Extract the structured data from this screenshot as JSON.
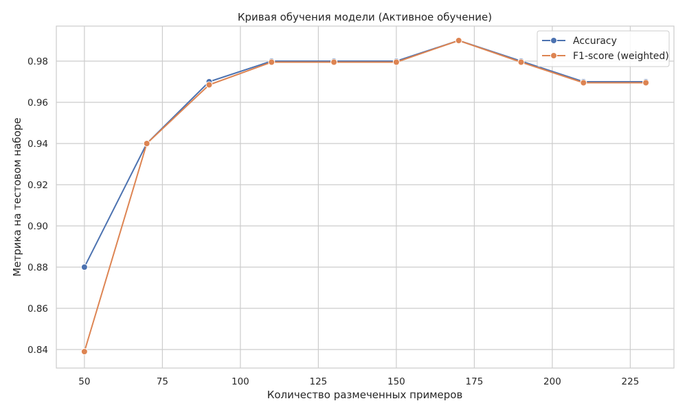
{
  "chart_data": {
    "type": "line",
    "title": "Кривая обучения модели (Активное обучение)",
    "xlabel": "Количество размеченных примеров",
    "ylabel": "Метрика на тестовом наборе",
    "x": [
      50,
      70,
      90,
      110,
      130,
      150,
      170,
      190,
      210,
      230
    ],
    "xlim": [
      41,
      239
    ],
    "ylim": [
      0.831,
      0.997
    ],
    "xticks": [
      50,
      75,
      100,
      125,
      150,
      175,
      200,
      225
    ],
    "yticks": [
      0.84,
      0.86,
      0.88,
      0.9,
      0.92,
      0.94,
      0.96,
      0.98
    ],
    "ytick_labels": [
      "0.84",
      "0.86",
      "0.88",
      "0.90",
      "0.92",
      "0.94",
      "0.96",
      "0.98"
    ],
    "grid": true,
    "legend_position": "top-right",
    "series": [
      {
        "name": "Accuracy",
        "color": "#4c72b0",
        "values": [
          0.88,
          0.94,
          0.97,
          0.98,
          0.98,
          0.98,
          0.99,
          0.98,
          0.97,
          0.97
        ]
      },
      {
        "name": "F1-score (weighted)",
        "color": "#dd8452",
        "values": [
          0.839,
          0.94,
          0.9685,
          0.9795,
          0.9795,
          0.9795,
          0.99,
          0.9795,
          0.9695,
          0.9695
        ]
      }
    ]
  }
}
